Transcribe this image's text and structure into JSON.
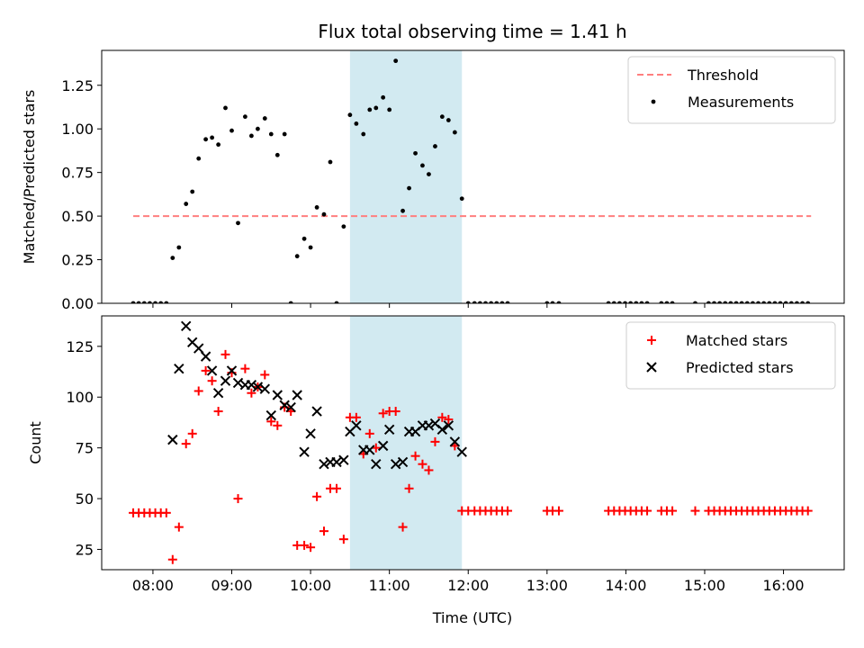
{
  "chart_data": {
    "type": "scatter",
    "title": "Flux total observing time = 1.41 h",
    "xlabel": "Time (UTC)",
    "xlim": [
      7.35,
      16.77
    ],
    "x_ticks": [
      8,
      9,
      10,
      11,
      12,
      13,
      14,
      15,
      16
    ],
    "x_tick_labels": [
      "08:00",
      "09:00",
      "10:00",
      "11:00",
      "12:00",
      "13:00",
      "14:00",
      "15:00",
      "16:00"
    ],
    "highlight_band": {
      "x_start": 10.5,
      "x_end": 11.92,
      "color": "#add8e6"
    },
    "panels": [
      {
        "ylabel": "Matched/Predicted stars",
        "ylim": [
          0,
          1.45
        ],
        "y_ticks": [
          0,
          0.25,
          0.5,
          0.75,
          1.0,
          1.25
        ],
        "y_tick_labels": [
          "0.00",
          "0.25",
          "0.50",
          "0.75",
          "1.00",
          "1.25"
        ],
        "legend_position": "top-right",
        "series": [
          {
            "name": "Threshold",
            "kind": "line",
            "style": "dashed",
            "color": "#ff7f7f",
            "points": [
              [
                7.75,
                0.5
              ],
              [
                16.35,
                0.5
              ]
            ]
          },
          {
            "name": "Measurements",
            "kind": "scatter",
            "marker": "dot",
            "color": "#000000",
            "points": [
              [
                7.75,
                0
              ],
              [
                7.82,
                0
              ],
              [
                7.89,
                0
              ],
              [
                7.96,
                0
              ],
              [
                8.03,
                0
              ],
              [
                8.1,
                0
              ],
              [
                8.17,
                0
              ],
              [
                8.25,
                0.26
              ],
              [
                8.33,
                0.32
              ],
              [
                8.42,
                0.57
              ],
              [
                8.5,
                0.64
              ],
              [
                8.58,
                0.83
              ],
              [
                8.67,
                0.94
              ],
              [
                8.75,
                0.95
              ],
              [
                8.83,
                0.91
              ],
              [
                8.92,
                1.12
              ],
              [
                9.0,
                0.99
              ],
              [
                9.08,
                0.46
              ],
              [
                9.17,
                1.07
              ],
              [
                9.25,
                0.96
              ],
              [
                9.33,
                1.0
              ],
              [
                9.42,
                1.06
              ],
              [
                9.5,
                0.97
              ],
              [
                9.58,
                0.85
              ],
              [
                9.67,
                0.97
              ],
              [
                9.75,
                0
              ],
              [
                9.83,
                0.27
              ],
              [
                9.92,
                0.37
              ],
              [
                10.0,
                0.32
              ],
              [
                10.08,
                0.55
              ],
              [
                10.17,
                0.51
              ],
              [
                10.25,
                0.81
              ],
              [
                10.33,
                0
              ],
              [
                10.42,
                0.44
              ],
              [
                10.5,
                1.08
              ],
              [
                10.58,
                1.03
              ],
              [
                10.67,
                0.97
              ],
              [
                10.75,
                1.11
              ],
              [
                10.83,
                1.12
              ],
              [
                10.92,
                1.18
              ],
              [
                11.0,
                1.11
              ],
              [
                11.08,
                1.39
              ],
              [
                11.17,
                0.53
              ],
              [
                11.25,
                0.66
              ],
              [
                11.33,
                0.86
              ],
              [
                11.42,
                0.79
              ],
              [
                11.5,
                0.74
              ],
              [
                11.58,
                0.9
              ],
              [
                11.67,
                1.07
              ],
              [
                11.75,
                1.05
              ],
              [
                11.83,
                0.98
              ],
              [
                11.92,
                0.6
              ],
              [
                12.0,
                0
              ],
              [
                12.08,
                0
              ],
              [
                12.15,
                0
              ],
              [
                12.22,
                0
              ],
              [
                12.29,
                0
              ],
              [
                12.36,
                0
              ],
              [
                12.43,
                0
              ],
              [
                12.5,
                0
              ],
              [
                13.0,
                0
              ],
              [
                13.07,
                0
              ],
              [
                13.15,
                0
              ],
              [
                13.78,
                0
              ],
              [
                13.85,
                0
              ],
              [
                13.92,
                0
              ],
              [
                13.99,
                0
              ],
              [
                14.06,
                0
              ],
              [
                14.13,
                0
              ],
              [
                14.2,
                0
              ],
              [
                14.27,
                0
              ],
              [
                14.45,
                0
              ],
              [
                14.52,
                0
              ],
              [
                14.59,
                0
              ],
              [
                14.88,
                0
              ],
              [
                15.05,
                0
              ],
              [
                15.12,
                0
              ],
              [
                15.19,
                0
              ],
              [
                15.26,
                0
              ],
              [
                15.33,
                0
              ],
              [
                15.4,
                0
              ],
              [
                15.47,
                0
              ],
              [
                15.54,
                0
              ],
              [
                15.61,
                0
              ],
              [
                15.68,
                0
              ],
              [
                15.75,
                0
              ],
              [
                15.82,
                0
              ],
              [
                15.89,
                0
              ],
              [
                15.96,
                0
              ],
              [
                16.03,
                0
              ],
              [
                16.1,
                0
              ],
              [
                16.17,
                0
              ],
              [
                16.24,
                0
              ],
              [
                16.31,
                0
              ]
            ]
          }
        ]
      },
      {
        "ylabel": "Count",
        "ylim": [
          15,
          140
        ],
        "y_ticks": [
          25,
          50,
          75,
          100,
          125
        ],
        "y_tick_labels": [
          "25",
          "50",
          "75",
          "100",
          "125"
        ],
        "legend_position": "top-right",
        "series": [
          {
            "name": "Matched stars",
            "kind": "scatter",
            "marker": "plus",
            "color": "#ff0000",
            "points": [
              [
                7.75,
                43
              ],
              [
                7.82,
                43
              ],
              [
                7.89,
                43
              ],
              [
                7.96,
                43
              ],
              [
                8.03,
                43
              ],
              [
                8.1,
                43
              ],
              [
                8.17,
                43
              ],
              [
                8.25,
                20
              ],
              [
                8.33,
                36
              ],
              [
                8.42,
                77
              ],
              [
                8.5,
                82
              ],
              [
                8.58,
                103
              ],
              [
                8.67,
                113
              ],
              [
                8.75,
                108
              ],
              [
                8.83,
                93
              ],
              [
                8.92,
                121
              ],
              [
                9.0,
                112
              ],
              [
                9.08,
                50
              ],
              [
                9.17,
                114
              ],
              [
                9.25,
                102
              ],
              [
                9.33,
                105
              ],
              [
                9.42,
                111
              ],
              [
                9.5,
                88
              ],
              [
                9.58,
                86
              ],
              [
                9.67,
                95
              ],
              [
                9.75,
                93
              ],
              [
                9.83,
                27
              ],
              [
                9.92,
                27
              ],
              [
                10.0,
                26
              ],
              [
                10.08,
                51
              ],
              [
                10.17,
                34
              ],
              [
                10.25,
                55
              ],
              [
                10.33,
                55
              ],
              [
                10.42,
                30
              ],
              [
                10.5,
                90
              ],
              [
                10.58,
                90
              ],
              [
                10.67,
                72
              ],
              [
                10.75,
                82
              ],
              [
                10.83,
                75
              ],
              [
                10.92,
                92
              ],
              [
                11.0,
                93
              ],
              [
                11.08,
                93
              ],
              [
                11.17,
                36
              ],
              [
                11.25,
                55
              ],
              [
                11.33,
                71
              ],
              [
                11.42,
                67
              ],
              [
                11.5,
                64
              ],
              [
                11.58,
                78
              ],
              [
                11.67,
                90
              ],
              [
                11.75,
                89
              ],
              [
                11.83,
                76
              ],
              [
                11.92,
                44
              ],
              [
                12.0,
                44
              ],
              [
                12.08,
                44
              ],
              [
                12.15,
                44
              ],
              [
                12.22,
                44
              ],
              [
                12.29,
                44
              ],
              [
                12.36,
                44
              ],
              [
                12.43,
                44
              ],
              [
                12.5,
                44
              ],
              [
                13.0,
                44
              ],
              [
                13.07,
                44
              ],
              [
                13.15,
                44
              ],
              [
                13.78,
                44
              ],
              [
                13.85,
                44
              ],
              [
                13.92,
                44
              ],
              [
                13.99,
                44
              ],
              [
                14.06,
                44
              ],
              [
                14.13,
                44
              ],
              [
                14.2,
                44
              ],
              [
                14.27,
                44
              ],
              [
                14.45,
                44
              ],
              [
                14.52,
                44
              ],
              [
                14.59,
                44
              ],
              [
                14.88,
                44
              ],
              [
                15.05,
                44
              ],
              [
                15.12,
                44
              ],
              [
                15.19,
                44
              ],
              [
                15.26,
                44
              ],
              [
                15.33,
                44
              ],
              [
                15.4,
                44
              ],
              [
                15.47,
                44
              ],
              [
                15.54,
                44
              ],
              [
                15.61,
                44
              ],
              [
                15.68,
                44
              ],
              [
                15.75,
                44
              ],
              [
                15.82,
                44
              ],
              [
                15.89,
                44
              ],
              [
                15.96,
                44
              ],
              [
                16.03,
                44
              ],
              [
                16.1,
                44
              ],
              [
                16.17,
                44
              ],
              [
                16.24,
                44
              ],
              [
                16.31,
                44
              ]
            ]
          },
          {
            "name": "Predicted stars",
            "kind": "scatter",
            "marker": "x",
            "color": "#000000",
            "points": [
              [
                8.25,
                79
              ],
              [
                8.33,
                114
              ],
              [
                8.42,
                135
              ],
              [
                8.5,
                127
              ],
              [
                8.58,
                124
              ],
              [
                8.67,
                120
              ],
              [
                8.75,
                113
              ],
              [
                8.83,
                102
              ],
              [
                8.92,
                108
              ],
              [
                9.0,
                113
              ],
              [
                9.08,
                107
              ],
              [
                9.17,
                106
              ],
              [
                9.25,
                106
              ],
              [
                9.33,
                105
              ],
              [
                9.42,
                104
              ],
              [
                9.5,
                91
              ],
              [
                9.58,
                101
              ],
              [
                9.67,
                96
              ],
              [
                9.75,
                95
              ],
              [
                9.83,
                101
              ],
              [
                9.92,
                73
              ],
              [
                10.0,
                82
              ],
              [
                10.08,
                93
              ],
              [
                10.17,
                67
              ],
              [
                10.25,
                68
              ],
              [
                10.33,
                68
              ],
              [
                10.42,
                69
              ],
              [
                10.5,
                83
              ],
              [
                10.58,
                86
              ],
              [
                10.67,
                74
              ],
              [
                10.75,
                74
              ],
              [
                10.83,
                67
              ],
              [
                10.92,
                76
              ],
              [
                11.0,
                84
              ],
              [
                11.08,
                67
              ],
              [
                11.17,
                68
              ],
              [
                11.25,
                83
              ],
              [
                11.33,
                83
              ],
              [
                11.42,
                86
              ],
              [
                11.5,
                86
              ],
              [
                11.58,
                87
              ],
              [
                11.67,
                84
              ],
              [
                11.75,
                86
              ],
              [
                11.83,
                78
              ],
              [
                11.92,
                73
              ]
            ]
          }
        ]
      }
    ]
  }
}
